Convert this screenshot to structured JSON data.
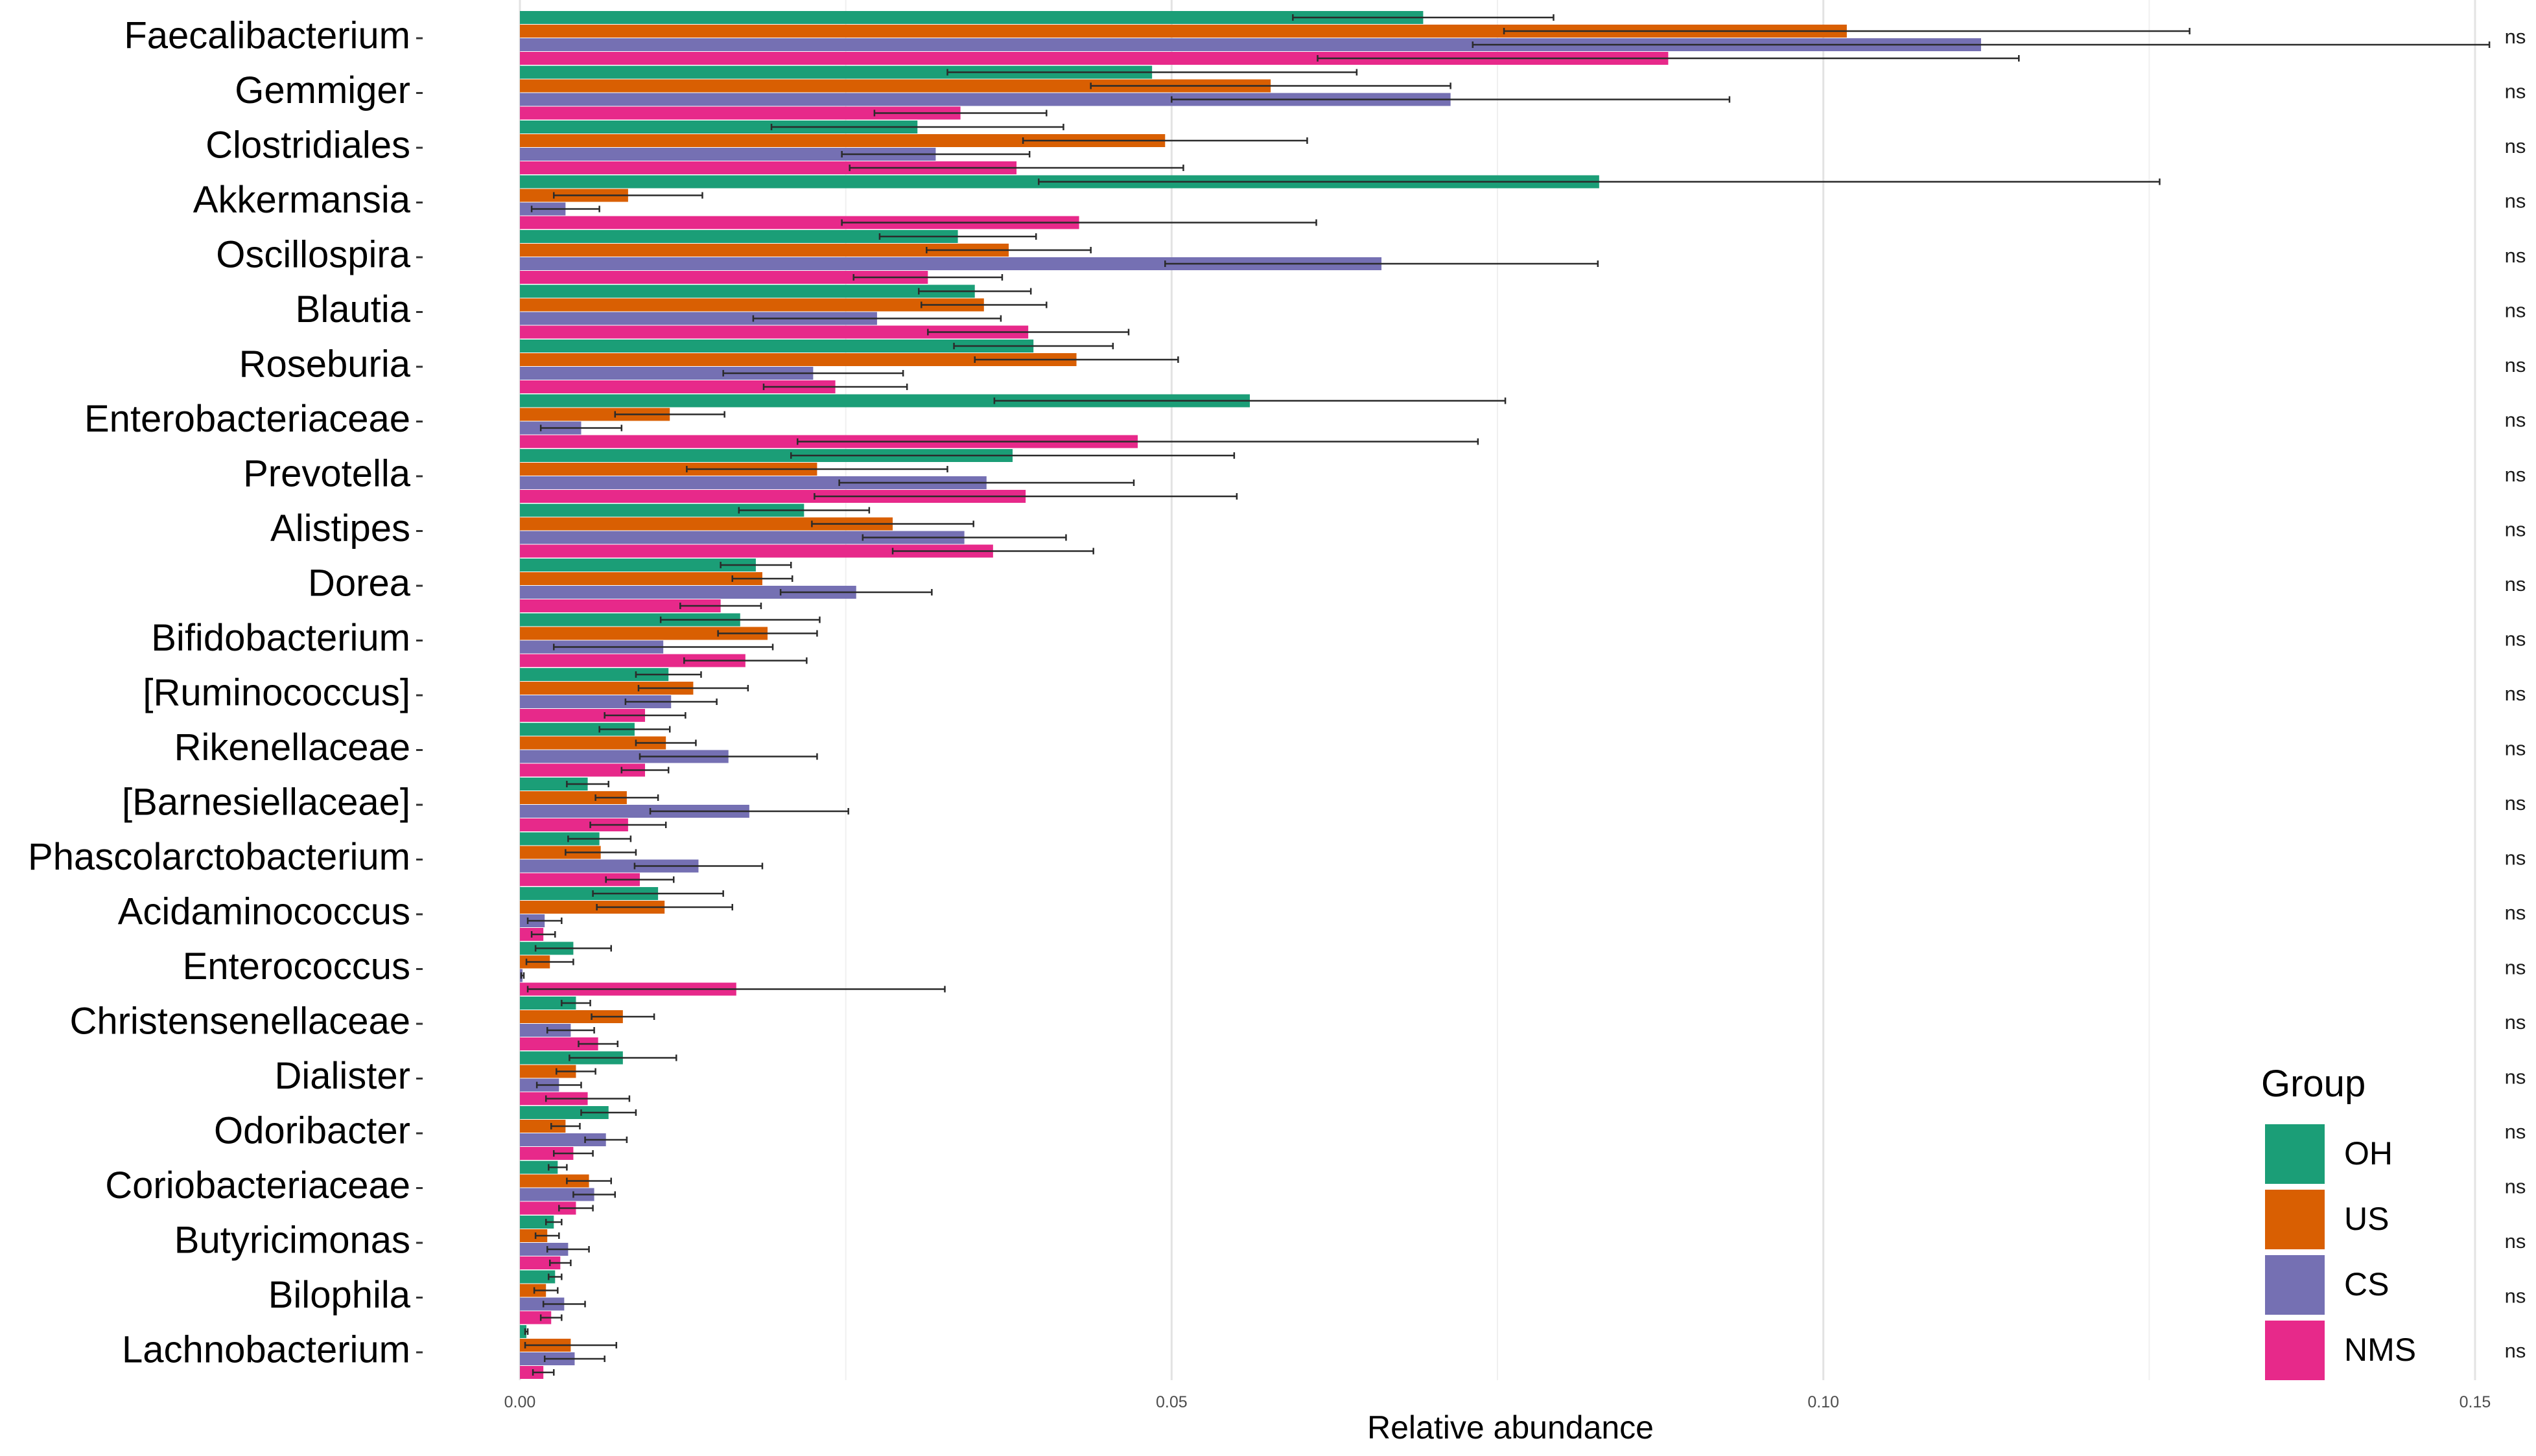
{
  "chart_data": {
    "type": "bar",
    "orientation": "horizontal",
    "xlabel": "Relative abundance",
    "ylabel": "",
    "xlim": [
      0,
      0.15
    ],
    "x_ticks": [
      "0.00",
      "0.05",
      "0.10",
      "0.15"
    ],
    "legend": {
      "title": "Group",
      "position": "bottom-right"
    },
    "categories": [
      "Faecalibacterium",
      "Gemmiger",
      "Clostridiales",
      "Akkermansia",
      "Oscillospira",
      "Blautia",
      "Roseburia",
      "Enterobacteriaceae",
      "Prevotella",
      "Alistipes",
      "Dorea",
      "Bifidobacterium",
      "[Ruminococcus]",
      "Rikenellaceae",
      "[Barnesiellaceae]",
      "Phascolarctobacterium",
      "Acidaminococcus",
      "Enterococcus",
      "Christensenellaceae",
      "Dialister",
      "Odoribacter",
      "Coriobacteriaceae",
      "Butyricimonas",
      "Bilophila",
      "Lachnobacterium"
    ],
    "significance": [
      "ns",
      "ns",
      "ns",
      "ns",
      "ns",
      "ns",
      "ns",
      "ns",
      "ns",
      "ns",
      "ns",
      "ns",
      "ns",
      "ns",
      "ns",
      "ns",
      "ns",
      "ns",
      "ns",
      "ns",
      "ns",
      "ns",
      "ns",
      "ns",
      "ns"
    ],
    "series": [
      {
        "name": "OH",
        "color": "#1b9e77",
        "values": [
          0.0693,
          0.0485,
          0.0305,
          0.0828,
          0.0336,
          0.0349,
          0.0394,
          0.056,
          0.0378,
          0.0218,
          0.0181,
          0.0169,
          0.0114,
          0.0088,
          0.0052,
          0.0061,
          0.0106,
          0.0041,
          0.0043,
          0.0079,
          0.0068,
          0.0029,
          0.0026,
          0.0027,
          0.0005
        ],
        "errors": [
          0.01,
          0.0157,
          0.0112,
          0.043,
          0.006,
          0.0043,
          0.0061,
          0.0196,
          0.017,
          0.005,
          0.0027,
          0.0061,
          0.0025,
          0.0027,
          0.0016,
          0.0024,
          0.005,
          0.0029,
          0.0011,
          0.0041,
          0.0021,
          0.0007,
          0.0006,
          0.0005,
          0.0001
        ]
      },
      {
        "name": "US",
        "color": "#d95f02",
        "values": [
          0.1018,
          0.0576,
          0.0495,
          0.0083,
          0.0375,
          0.0356,
          0.0427,
          0.0115,
          0.0228,
          0.0286,
          0.0186,
          0.019,
          0.0133,
          0.0112,
          0.0082,
          0.0062,
          0.0111,
          0.0023,
          0.0079,
          0.0043,
          0.0035,
          0.0053,
          0.0021,
          0.002,
          0.0039
        ],
        "errors": [
          0.0263,
          0.0138,
          0.0109,
          0.0057,
          0.0063,
          0.0048,
          0.0078,
          0.0042,
          0.01,
          0.0062,
          0.0023,
          0.0038,
          0.0042,
          0.0023,
          0.0024,
          0.0027,
          0.0052,
          0.0018,
          0.0024,
          0.0015,
          0.0011,
          0.0017,
          0.0009,
          0.0009,
          0.0035
        ]
      },
      {
        "name": "CS",
        "color": "#7570b3",
        "values": [
          0.1121,
          0.0714,
          0.0319,
          0.0035,
          0.0661,
          0.0274,
          0.0225,
          0.0047,
          0.0358,
          0.0341,
          0.0258,
          0.011,
          0.0116,
          0.016,
          0.0176,
          0.0137,
          0.0019,
          0.0002,
          0.0039,
          0.003,
          0.0066,
          0.0057,
          0.0037,
          0.0034,
          0.0042
        ],
        "errors": [
          0.039,
          0.0214,
          0.0072,
          0.0026,
          0.0166,
          0.0095,
          0.0069,
          0.0031,
          0.0113,
          0.0078,
          0.0058,
          0.0084,
          0.0035,
          0.0068,
          0.0076,
          0.0049,
          0.0013,
          0.0001,
          0.0018,
          0.0017,
          0.0016,
          0.0016,
          0.0016,
          0.0016,
          0.0023
        ]
      },
      {
        "name": "NMS",
        "color": "#e7298a",
        "values": [
          0.0881,
          0.0338,
          0.0381,
          0.0429,
          0.0313,
          0.039,
          0.0242,
          0.0474,
          0.0388,
          0.0363,
          0.0154,
          0.0173,
          0.0096,
          0.0096,
          0.0083,
          0.0092,
          0.0018,
          0.0166,
          0.006,
          0.0052,
          0.0041,
          0.0043,
          0.0031,
          0.0024,
          0.0018
        ],
        "errors": [
          0.0269,
          0.0066,
          0.0128,
          0.0182,
          0.0057,
          0.0077,
          0.0055,
          0.0261,
          0.0162,
          0.0077,
          0.0031,
          0.0047,
          0.0031,
          0.0018,
          0.0029,
          0.0026,
          0.0009,
          0.016,
          0.0015,
          0.0032,
          0.0015,
          0.0013,
          0.0008,
          0.0008,
          0.0008
        ]
      }
    ]
  }
}
